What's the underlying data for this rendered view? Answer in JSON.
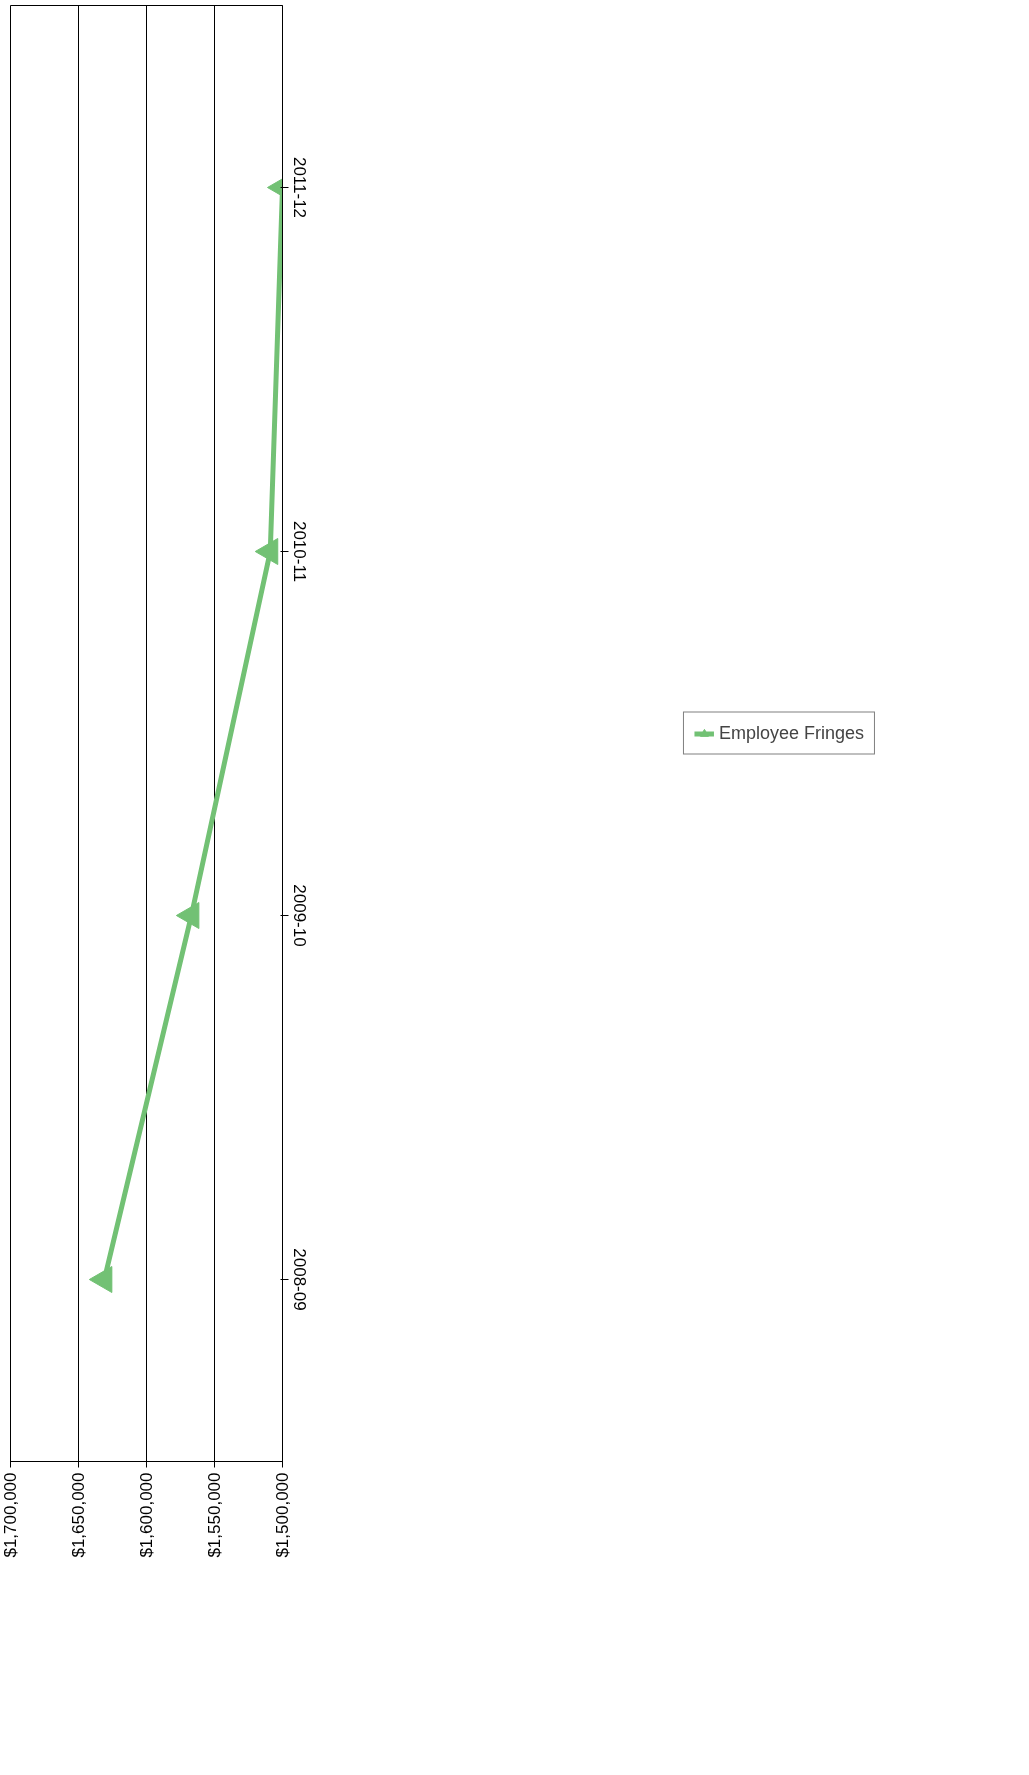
{
  "chart_data": {
    "type": "line",
    "orientation": "horizontal",
    "categories": [
      "2011-12",
      "2010-11",
      "2009-10",
      "2008-09"
    ],
    "series": [
      {
        "name": "Employee Fringes",
        "color": "#72c174",
        "values": [
          1500000,
          1509000,
          1567000,
          1631000
        ]
      }
    ],
    "xlim": [
      1700000,
      1500000
    ],
    "xticks": [
      {
        "value": 1700000,
        "label": "$1,700,000"
      },
      {
        "value": 1650000,
        "label": "$1,650,000"
      },
      {
        "value": 1600000,
        "label": "$1,600,000"
      },
      {
        "value": 1550000,
        "label": "$1,550,000"
      },
      {
        "value": 1500000,
        "label": "$1,500,000"
      }
    ],
    "grid": "x",
    "legend": "right",
    "marker": "triangle",
    "line_style": "solid"
  }
}
